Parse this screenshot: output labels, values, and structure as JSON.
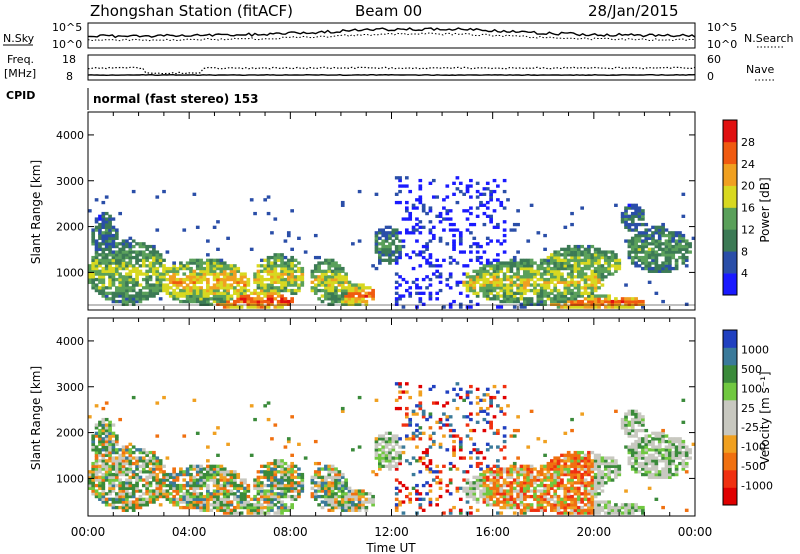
{
  "header": {
    "station": "Zhongshan Station (fitACF)",
    "beam": "Beam 00",
    "date": "28/Jan/2015"
  },
  "sky_panel": {
    "left_label": "N.Sky",
    "right_label": "N.Search",
    "left_ticks": [
      "10^5",
      "10^0"
    ],
    "right_ticks": [
      "10^5",
      "10^0"
    ]
  },
  "freq_panel": {
    "left_label_1": "Freq.",
    "left_label_2": "[MHz]",
    "left_ticks": [
      "18",
      "8"
    ],
    "right_label": "Nave",
    "right_ticks": [
      "60",
      "0"
    ],
    "cpid_label": "CPID"
  },
  "cpid_text": "normal (fast stereo) 153",
  "colors": {
    "power": [
      "#1a1aff",
      "#2a4ea8",
      "#3c7a55",
      "#5aa05a",
      "#d8d820",
      "#f0a020",
      "#f05a10",
      "#e01010"
    ],
    "velocity": [
      "#e00000",
      "#f03010",
      "#f07010",
      "#f0a020",
      "#c8c8c0",
      "#c8c8c0",
      "#70c840",
      "#3a8a3a",
      "#3a7a9a",
      "#2040c0"
    ]
  },
  "chart_data": [
    {
      "type": "heatmap",
      "title": "Power",
      "ylabel": "Slant Range [km]",
      "xlabel": "Time UT",
      "ylim": [
        180,
        4500
      ],
      "yticks": [
        "4000",
        "3000",
        "2000",
        "1000"
      ],
      "xticks": [
        "00:00",
        "04:00",
        "08:00",
        "12:00",
        "16:00",
        "20:00",
        "00:00"
      ],
      "colorbar": {
        "label": "Power [dB]",
        "ticks": [
          "28",
          "24",
          "20",
          "16",
          "12",
          "8",
          "4"
        ]
      }
    },
    {
      "type": "heatmap",
      "title": "Velocity",
      "ylabel": "Slant Range [km]",
      "xlabel": "Time UT",
      "ylim": [
        180,
        4500
      ],
      "yticks": [
        "4000",
        "3000",
        "2000",
        "1000"
      ],
      "xticks": [
        "00:00",
        "04:00",
        "08:00",
        "12:00",
        "16:00",
        "20:00",
        "00:00"
      ],
      "colorbar": {
        "label": "Velocity [m s⁻¹]",
        "ticks": [
          "1000",
          "500",
          "100",
          "25",
          "-25",
          "-100",
          "-500",
          "-1000"
        ]
      }
    }
  ]
}
